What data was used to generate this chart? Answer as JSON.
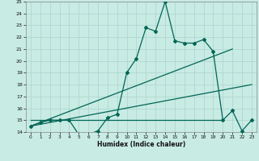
{
  "xlabel": "Humidex (Indice chaleur)",
  "bg_color": "#c8ebe4",
  "grid_color": "#b0d8d0",
  "line_color": "#006655",
  "xlim": [
    -0.5,
    23.5
  ],
  "ylim": [
    14,
    25
  ],
  "xticks": [
    0,
    1,
    2,
    3,
    4,
    5,
    6,
    7,
    8,
    9,
    10,
    11,
    12,
    13,
    14,
    15,
    16,
    17,
    18,
    19,
    20,
    21,
    22,
    23
  ],
  "yticks": [
    14,
    15,
    16,
    17,
    18,
    19,
    20,
    21,
    22,
    23,
    24,
    25
  ],
  "line1_x": [
    0,
    1,
    2,
    3,
    4,
    5,
    6,
    7,
    8,
    9,
    10,
    11,
    12,
    13,
    14,
    15,
    16,
    17,
    18,
    19,
    20,
    21,
    22,
    23
  ],
  "line1_y": [
    14.5,
    14.8,
    15.0,
    15.0,
    15.0,
    13.8,
    13.8,
    14.1,
    15.2,
    15.5,
    19.0,
    20.2,
    22.8,
    22.5,
    25.0,
    21.7,
    21.5,
    21.5,
    21.8,
    20.8,
    15.0,
    15.8,
    14.1,
    15.0
  ],
  "line2_x": [
    0,
    21
  ],
  "line2_y": [
    14.5,
    21.0
  ],
  "line3_x": [
    0,
    23
  ],
  "line3_y": [
    14.5,
    18.0
  ],
  "line4_x": [
    0,
    20
  ],
  "line4_y": [
    15.0,
    15.0
  ],
  "marker": "D",
  "marker_size": 2.0,
  "line_width": 0.9
}
